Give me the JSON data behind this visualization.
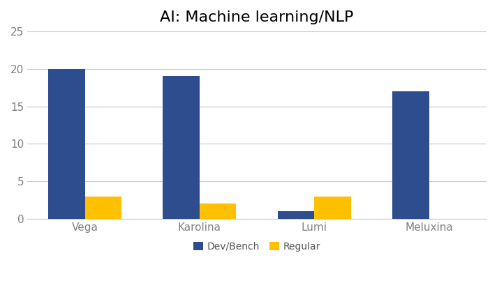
{
  "title": "AI: Machine learning/NLP",
  "categories": [
    "Vega",
    "Karolina",
    "Lumi",
    "Meluxina"
  ],
  "dev_bench": [
    20,
    19,
    1,
    17
  ],
  "regular": [
    3,
    2,
    3,
    0
  ],
  "dev_bench_color": "#2E4D8E",
  "regular_color": "#FFC000",
  "ylim": [
    0,
    25
  ],
  "yticks": [
    0,
    5,
    10,
    15,
    20,
    25
  ],
  "legend_labels": [
    "Dev/Bench",
    "Regular"
  ],
  "bar_width": 0.32,
  "background_color": "#FFFFFF",
  "grid_color": "#C8C8C8",
  "title_fontsize": 16,
  "tick_label_color": "#808080",
  "tick_fontsize": 11
}
